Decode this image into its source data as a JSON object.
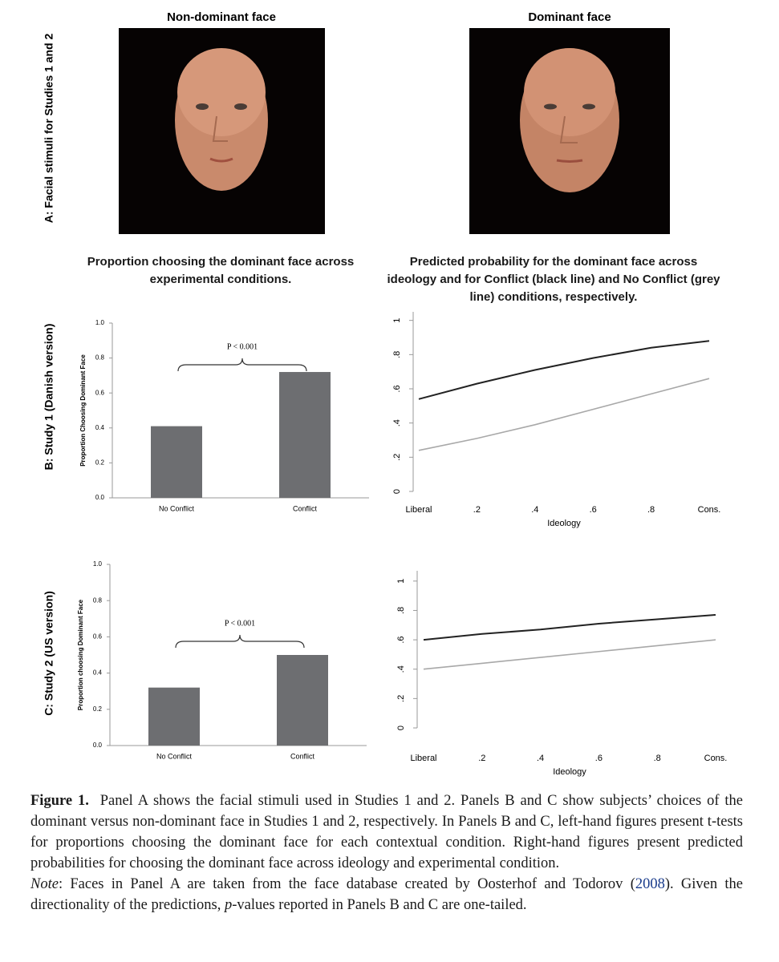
{
  "panel_labels": [
    "A: Facial stimuli for Studies 1 and 2",
    "B: Study 1 (Danish version)",
    "C: Study 2 (US version)"
  ],
  "faces": [
    "Non-dominant face",
    "Dominant face"
  ],
  "column_titles": [
    "Proportion choosing the dominant face across experimental conditions.",
    "Predicted probability for the dominant face across ideology and for Conflict (black line) and No Conflict (grey line) conditions, respectively."
  ],
  "chart_data": [
    {
      "type": "bar",
      "ylabel": "Proportion Choosing Dominant Face",
      "categories": [
        "No Conflict",
        "Conflict"
      ],
      "values": [
        0.41,
        0.72
      ],
      "color": "#6d6e71",
      "ylim": [
        0,
        1
      ],
      "yticks": [
        {
          "value": 0,
          "label": "0.0"
        },
        {
          "value": 0.2,
          "label": "0.2"
        },
        {
          "value": 0.4,
          "label": "0.4"
        },
        {
          "value": 0.6,
          "label": "0.6"
        },
        {
          "value": 0.8,
          "label": "0.8"
        },
        {
          "value": 1,
          "label": "1.0"
        }
      ],
      "annotation": "P < 0.001"
    },
    {
      "type": "line",
      "xlabel": "Ideology",
      "x": [
        0,
        0.2,
        0.4,
        0.6,
        0.8,
        1
      ],
      "series": [
        {
          "color": "#222222",
          "values": [
            0.54,
            0.63,
            0.71,
            0.78,
            0.84,
            0.88
          ]
        },
        {
          "color": "#a8a8a8",
          "values": [
            0.24,
            0.31,
            0.39,
            0.48,
            0.57,
            0.66
          ]
        }
      ],
      "xlim": [
        0,
        1
      ],
      "xticks": [
        {
          "value": 0,
          "label": "Liberal"
        },
        {
          "value": 0.2,
          "label": ".2"
        },
        {
          "value": 0.4,
          "label": ".4"
        },
        {
          "value": 0.6,
          "label": ".6"
        },
        {
          "value": 0.8,
          "label": ".8"
        },
        {
          "value": 1,
          "label": "Cons."
        }
      ],
      "ylim": [
        0,
        1.05
      ],
      "yticks": [
        0,
        {
          "value": 0.2,
          "label": ".2"
        },
        {
          "value": 0.4,
          "label": ".4"
        },
        {
          "value": 0.6,
          "label": ".6"
        },
        {
          "value": 0.8,
          "label": ".8"
        },
        1
      ]
    },
    {
      "type": "bar",
      "ylabel": "Proportion choosing Dominant Face",
      "categories": [
        "No Conflict",
        "Conflict"
      ],
      "values": [
        0.32,
        0.5
      ],
      "color": "#6d6e71",
      "ylim": [
        0,
        1
      ],
      "yticks": [
        {
          "value": 0,
          "label": "0.0"
        },
        {
          "value": 0.2,
          "label": "0.2"
        },
        {
          "value": 0.4,
          "label": "0.4"
        },
        {
          "value": 0.6,
          "label": "0.6"
        },
        {
          "value": 0.8,
          "label": "0.8"
        },
        {
          "value": 1,
          "label": "1.0"
        }
      ],
      "annotation": "P < 0.001"
    },
    {
      "type": "line",
      "xlabel": "Ideology",
      "x": [
        0,
        0.2,
        0.4,
        0.6,
        0.8,
        1
      ],
      "series": [
        {
          "color": "#222222",
          "values": [
            0.6,
            0.64,
            0.67,
            0.71,
            0.74,
            0.77
          ]
        },
        {
          "color": "#a8a8a8",
          "values": [
            0.4,
            0.44,
            0.48,
            0.52,
            0.56,
            0.6
          ]
        }
      ],
      "xlim": [
        0,
        1
      ],
      "xticks": [
        {
          "value": 0,
          "label": "Liberal"
        },
        {
          "value": 0.2,
          "label": ".2"
        },
        {
          "value": 0.4,
          "label": ".4"
        },
        {
          "value": 0.6,
          "label": ".6"
        },
        {
          "value": 0.8,
          "label": ".8"
        },
        {
          "value": 1,
          "label": "Cons."
        }
      ],
      "ylim": [
        0,
        1.07
      ],
      "yticks": [
        0,
        {
          "value": 0.2,
          "label": ".2"
        },
        {
          "value": 0.4,
          "label": ".4"
        },
        {
          "value": 0.6,
          "label": ".6"
        },
        {
          "value": 0.8,
          "label": ".8"
        },
        1
      ]
    }
  ],
  "caption": {
    "label": "Figure 1.",
    "text": "Panel A shows the facial stimuli used in Studies 1 and 2. Panels B and C show subjects’ choices of the dominant versus non-dominant face in Studies 1 and 2, respectively. In Panels B and C, left-hand figures present t-tests for proportions choosing the dominant face for each contextual condition. Right-hand figures present predicted probabilities for choosing the dominant face across ideology and experimental condition.",
    "note": [
      "Note",
      ": Faces in Panel A are taken from the face database created by Oosterhof and Todorov (",
      "2008",
      "). Given the directionality of the predictions, ",
      "p",
      "-values reported in Panels B and C are one-tailed."
    ]
  }
}
